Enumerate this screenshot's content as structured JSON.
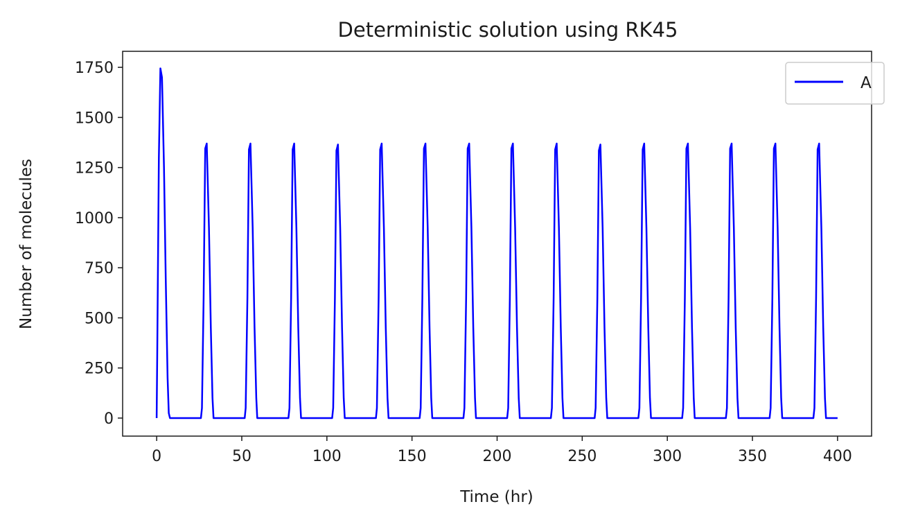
{
  "chart_data": {
    "type": "line",
    "title": "Deterministic solution using RK45",
    "xlabel": "Time (hr)",
    "ylabel": "Number of molecules",
    "xlim": [
      -20,
      420
    ],
    "ylim": [
      -90,
      1830
    ],
    "xticks": [
      0,
      50,
      100,
      150,
      200,
      250,
      300,
      350,
      400
    ],
    "yticks": [
      0,
      250,
      500,
      750,
      1000,
      1250,
      1500,
      1750
    ],
    "grid": false,
    "legend": {
      "position": "top-right",
      "entries": [
        "A"
      ]
    },
    "series": [
      {
        "name": "A",
        "color": "#0000ff",
        "x": [
          0,
          0.3,
          1.3,
          2.2,
          3.1,
          4.3,
          5.3,
          6.4,
          7.1,
          7.8,
          26.0,
          26.6,
          27.6,
          28.5,
          29.4,
          30.7,
          31.8,
          32.8,
          33.4,
          51.7,
          52.3,
          53.3,
          54.2,
          55.1,
          56.4,
          57.5,
          58.5,
          59.1,
          77.4,
          78.0,
          79.0,
          79.9,
          80.8,
          82.1,
          83.2,
          84.2,
          84.8,
          103.1,
          103.7,
          104.7,
          105.6,
          106.5,
          107.8,
          108.9,
          109.9,
          110.5,
          128.8,
          129.4,
          130.4,
          131.3,
          132.2,
          133.5,
          134.6,
          135.6,
          136.2,
          154.5,
          155.1,
          156.1,
          157.0,
          157.9,
          159.2,
          160.3,
          161.3,
          161.9,
          180.2,
          180.8,
          181.8,
          182.7,
          183.6,
          184.9,
          186.0,
          187.0,
          187.6,
          205.9,
          206.5,
          207.5,
          208.4,
          209.3,
          210.6,
          211.7,
          212.7,
          213.3,
          231.6,
          232.2,
          233.2,
          234.1,
          235.0,
          236.3,
          237.4,
          238.4,
          239.0,
          257.3,
          257.9,
          258.9,
          259.8,
          260.7,
          262.0,
          263.1,
          264.1,
          264.7,
          283.0,
          283.6,
          284.6,
          285.5,
          286.4,
          287.7,
          288.8,
          289.8,
          290.4,
          308.7,
          309.3,
          310.3,
          311.2,
          312.1,
          313.4,
          314.5,
          315.5,
          316.1,
          334.4,
          335.0,
          336.0,
          336.9,
          337.8,
          339.1,
          340.2,
          341.2,
          341.8,
          360.1,
          360.7,
          361.7,
          362.6,
          363.5,
          364.8,
          365.9,
          366.9,
          367.5,
          385.8,
          386.4,
          387.4,
          388.3,
          389.2,
          390.5,
          391.6,
          392.6,
          393.2,
          400
        ],
        "y": [
          0,
          300,
          1300,
          1745,
          1700,
          1250,
          700,
          200,
          25,
          0,
          0,
          50,
          600,
          1345,
          1370,
          950,
          450,
          100,
          0,
          0,
          50,
          600,
          1340,
          1370,
          950,
          450,
          100,
          0,
          0,
          50,
          600,
          1340,
          1370,
          950,
          450,
          100,
          0,
          0,
          50,
          600,
          1335,
          1365,
          950,
          450,
          100,
          0,
          0,
          50,
          600,
          1340,
          1370,
          950,
          450,
          100,
          0,
          0,
          50,
          600,
          1345,
          1370,
          950,
          450,
          100,
          0,
          0,
          50,
          600,
          1345,
          1370,
          950,
          450,
          100,
          0,
          0,
          50,
          600,
          1345,
          1370,
          950,
          450,
          100,
          0,
          0,
          50,
          600,
          1340,
          1370,
          950,
          450,
          100,
          0,
          0,
          50,
          600,
          1335,
          1365,
          950,
          450,
          100,
          0,
          0,
          50,
          600,
          1340,
          1370,
          950,
          450,
          100,
          0,
          0,
          50,
          600,
          1345,
          1370,
          950,
          450,
          100,
          0,
          0,
          50,
          600,
          1345,
          1370,
          950,
          450,
          100,
          0,
          0,
          50,
          600,
          1345,
          1370,
          950,
          450,
          100,
          0,
          0,
          50,
          600,
          1340,
          1370,
          950,
          450,
          100,
          0,
          0
        ]
      }
    ]
  }
}
